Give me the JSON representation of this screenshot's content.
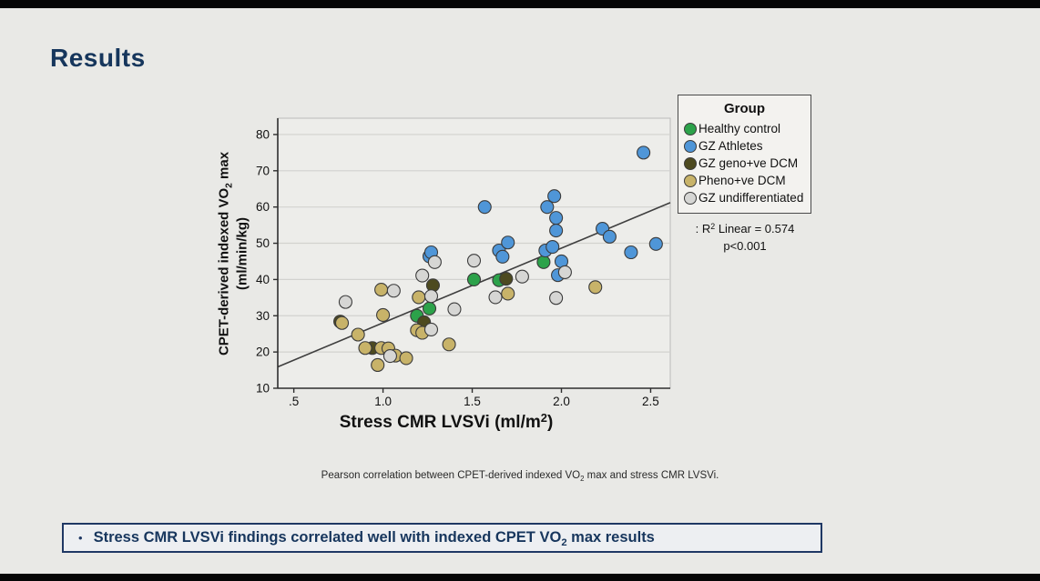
{
  "slide": {
    "title": "Results"
  },
  "chart_data": {
    "type": "scatter",
    "xlabel": {
      "part1": "Stress CMR LVSVi (ml/m",
      "sup": "2",
      "part2": ")"
    },
    "ylabel": {
      "line1_part1": "CPET-derived indexed VO",
      "line1_sub": "2",
      "line1_part2": " max",
      "line2": "(ml/min/kg)"
    },
    "xlim": [
      0.41,
      2.61
    ],
    "ylim": [
      10,
      84.5
    ],
    "x_ticks": [
      {
        "v": 0.5,
        "label": ".5"
      },
      {
        "v": 1.0,
        "label": "1.0"
      },
      {
        "v": 1.5,
        "label": "1.5"
      },
      {
        "v": 2.0,
        "label": "2.0"
      },
      {
        "v": 2.5,
        "label": "2.5"
      }
    ],
    "y_ticks": [
      10,
      20,
      30,
      40,
      50,
      60,
      70,
      80
    ],
    "grid": "horizontal",
    "legend_title": "Group",
    "legend_position": "top-right-outside",
    "trendline": {
      "x1": 0.41,
      "y1": 15.9,
      "x2": 2.61,
      "y2": 61.2,
      "equation": "y = 20.6x + 7.5"
    },
    "series": [
      {
        "name": "Healthy control",
        "color": "#2ca24a",
        "points": [
          [
            1.19,
            30
          ],
          [
            1.26,
            32
          ],
          [
            1.51,
            40
          ],
          [
            1.65,
            39.8
          ],
          [
            1.9,
            44.8
          ]
        ]
      },
      {
        "name": "GZ Athletes",
        "color": "#4f96d8",
        "points": [
          [
            1.26,
            46.4
          ],
          [
            1.27,
            47.5
          ],
          [
            1.57,
            60
          ],
          [
            1.65,
            48
          ],
          [
            1.67,
            46.3
          ],
          [
            1.7,
            50.2
          ],
          [
            1.91,
            48
          ],
          [
            1.95,
            49
          ],
          [
            1.92,
            60
          ],
          [
            1.96,
            63
          ],
          [
            1.97,
            57
          ],
          [
            1.97,
            53.5
          ],
          [
            2.0,
            45
          ],
          [
            1.98,
            41.2
          ],
          [
            2.23,
            54
          ],
          [
            2.27,
            51.8
          ],
          [
            2.39,
            47.5
          ],
          [
            2.46,
            75
          ],
          [
            2.53,
            49.8
          ]
        ]
      },
      {
        "name": "GZ geno+ve DCM",
        "color": "#4d4a1f",
        "points": [
          [
            0.76,
            28.4
          ],
          [
            0.94,
            21.1
          ],
          [
            1.23,
            28.2
          ],
          [
            1.28,
            38.4
          ],
          [
            1.69,
            40.2
          ]
        ]
      },
      {
        "name": "Pheno+ve DCM",
        "color": "#c8b369",
        "points": [
          [
            0.77,
            28
          ],
          [
            0.86,
            24.8
          ],
          [
            0.9,
            21.1
          ],
          [
            0.97,
            16.4
          ],
          [
            0.99,
            21.1
          ],
          [
            0.99,
            37.2
          ],
          [
            1.0,
            30.2
          ],
          [
            1.03,
            21
          ],
          [
            1.07,
            19
          ],
          [
            1.13,
            18.3
          ],
          [
            1.19,
            26
          ],
          [
            1.22,
            25.3
          ],
          [
            1.2,
            35.1
          ],
          [
            1.37,
            22.1
          ],
          [
            1.7,
            36.1
          ],
          [
            2.19,
            37.9
          ]
        ]
      },
      {
        "name": "GZ undifferentiated",
        "color": "#d6d6d4",
        "points": [
          [
            0.79,
            33.8
          ],
          [
            1.04,
            18.9
          ],
          [
            1.06,
            36.9
          ],
          [
            1.22,
            41.1
          ],
          [
            1.27,
            35.4
          ],
          [
            1.27,
            26.2
          ],
          [
            1.29,
            44.8
          ],
          [
            1.4,
            31.8
          ],
          [
            1.51,
            45.2
          ],
          [
            1.63,
            35.1
          ],
          [
            1.78,
            40.8
          ],
          [
            1.97,
            34.9
          ],
          [
            2.02,
            42
          ]
        ]
      }
    ]
  },
  "annotation": {
    "r2_part1": ": R",
    "r2_sup": "2",
    "r2_part2": " Linear = 0.574",
    "p_value": "p<0.001"
  },
  "caption": {
    "part1": "Pearson correlation between CPET-derived indexed VO",
    "sub": "2",
    "part2": " max and stress CMR LVSVi."
  },
  "bullet": {
    "marker": "•",
    "part1": "Stress CMR LVSVi findings correlated well with indexed CPET VO",
    "sub": "2",
    "part2": " max results"
  },
  "colors": {
    "slide_background": "#e9e9e6",
    "plot_background": "#ededea",
    "gridline": "#d2d2cf",
    "axis": "#2e2e2e",
    "trendline": "#3f3f3f",
    "point_border": "#3b3b3b",
    "title_navy": "#16365c",
    "takeaway_border": "#1f3864",
    "top_bottom_bars": "#060606"
  }
}
